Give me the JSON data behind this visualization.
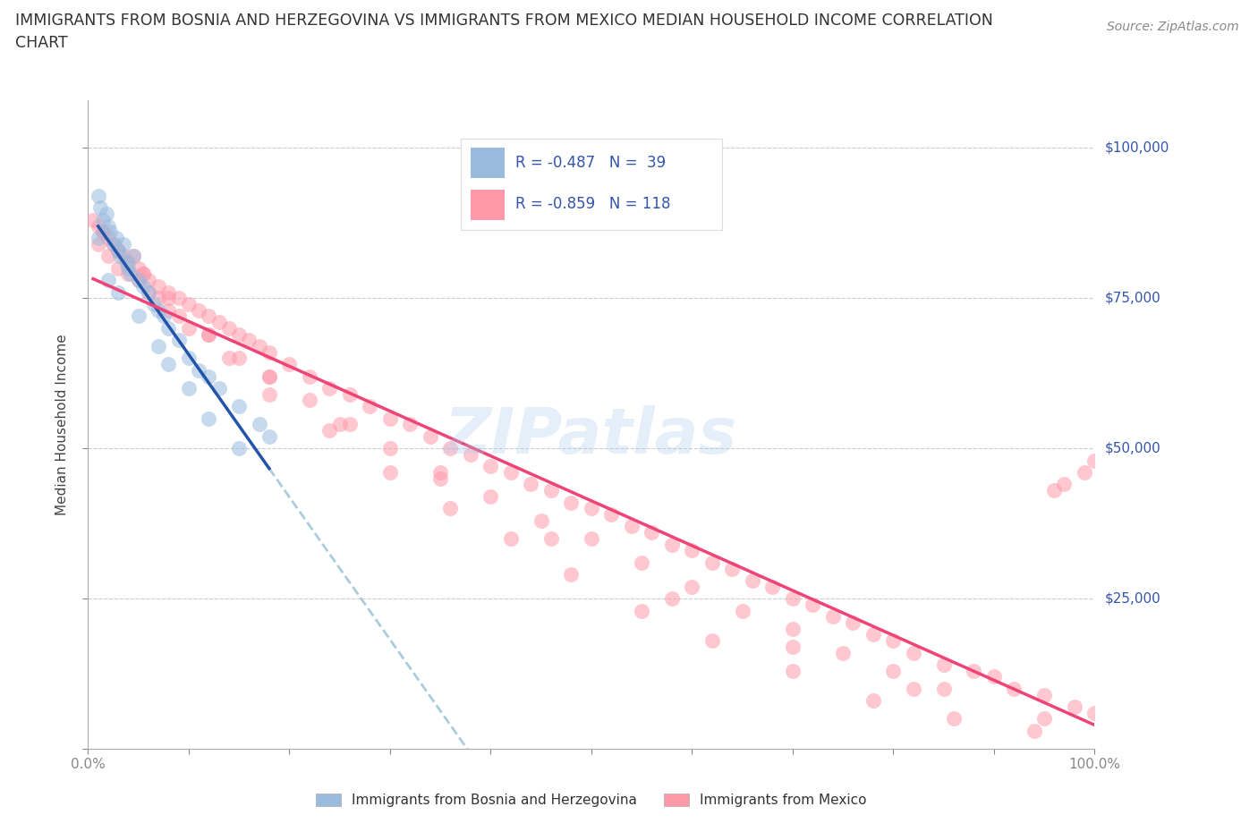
{
  "title_line1": "IMMIGRANTS FROM BOSNIA AND HERZEGOVINA VS IMMIGRANTS FROM MEXICO MEDIAN HOUSEHOLD INCOME CORRELATION",
  "title_line2": "CHART",
  "source_text": "Source: ZipAtlas.com",
  "ylabel": "Median Household Income",
  "watermark": "ZIPatlas",
  "legend_label1": "Immigrants from Bosnia and Herzegovina",
  "legend_label2": "Immigrants from Mexico",
  "blue_color": "#99BBDD",
  "pink_color": "#FF99AA",
  "blue_line_color": "#2255AA",
  "pink_line_color": "#EE4477",
  "dashed_line_color": "#AACCDD",
  "ytick_vals": [
    0,
    25000,
    50000,
    75000,
    100000
  ],
  "ytick_labels": [
    "",
    "$25,000",
    "$50,000",
    "$75,000",
    "$100,000"
  ],
  "blue_scatter_x": [
    1.0,
    1.2,
    1.5,
    1.8,
    2.0,
    2.2,
    2.5,
    2.8,
    3.0,
    3.2,
    3.5,
    3.8,
    4.0,
    4.2,
    4.5,
    5.0,
    5.5,
    6.0,
    6.5,
    7.0,
    7.5,
    8.0,
    9.0,
    10.0,
    11.0,
    12.0,
    13.0,
    15.0,
    17.0,
    18.0,
    1.0,
    2.0,
    3.0,
    5.0,
    7.0,
    8.0,
    10.0,
    12.0,
    15.0
  ],
  "blue_scatter_y": [
    92000,
    90000,
    88000,
    89000,
    87000,
    86000,
    84000,
    85000,
    83000,
    82000,
    84000,
    81000,
    80000,
    79000,
    82000,
    78000,
    77000,
    76000,
    74000,
    73000,
    72000,
    70000,
    68000,
    65000,
    63000,
    62000,
    60000,
    57000,
    54000,
    52000,
    85000,
    78000,
    76000,
    72000,
    67000,
    64000,
    60000,
    55000,
    50000
  ],
  "pink_scatter_x": [
    0.5,
    1.0,
    1.5,
    2.0,
    2.5,
    3.0,
    3.5,
    4.0,
    4.5,
    5.0,
    5.5,
    6.0,
    7.0,
    8.0,
    9.0,
    10.0,
    11.0,
    12.0,
    13.0,
    14.0,
    15.0,
    16.0,
    17.0,
    18.0,
    20.0,
    22.0,
    24.0,
    26.0,
    28.0,
    30.0,
    32.0,
    34.0,
    36.0,
    38.0,
    40.0,
    42.0,
    44.0,
    46.0,
    48.0,
    50.0,
    52.0,
    54.0,
    56.0,
    58.0,
    60.0,
    62.0,
    64.0,
    66.0,
    68.0,
    70.0,
    72.0,
    74.0,
    76.0,
    78.0,
    80.0,
    82.0,
    85.0,
    88.0,
    90.0,
    92.0,
    95.0,
    98.0,
    100.0,
    3.0,
    5.0,
    7.0,
    9.0,
    12.0,
    15.0,
    18.0,
    22.0,
    26.0,
    30.0,
    35.0,
    40.0,
    45.0,
    50.0,
    55.0,
    60.0,
    65.0,
    70.0,
    75.0,
    80.0,
    85.0,
    1.0,
    2.0,
    4.0,
    6.0,
    8.0,
    10.0,
    14.0,
    18.0,
    24.0,
    30.0,
    36.0,
    42.0,
    48.0,
    55.0,
    62.0,
    70.0,
    78.0,
    86.0,
    94.0,
    1.5,
    3.0,
    5.5,
    8.0,
    12.0,
    18.0,
    25.0,
    35.0,
    46.0,
    58.0,
    70.0,
    82.0,
    95.0,
    100.0,
    99.0,
    97.0,
    96.0
  ],
  "pink_scatter_y": [
    88000,
    87000,
    86000,
    85000,
    84000,
    83000,
    82000,
    81000,
    82000,
    80000,
    79000,
    78000,
    77000,
    76000,
    75000,
    74000,
    73000,
    72000,
    71000,
    70000,
    69000,
    68000,
    67000,
    66000,
    64000,
    62000,
    60000,
    59000,
    57000,
    55000,
    54000,
    52000,
    50000,
    49000,
    47000,
    46000,
    44000,
    43000,
    41000,
    40000,
    39000,
    37000,
    36000,
    34000,
    33000,
    31000,
    30000,
    28000,
    27000,
    25000,
    24000,
    22000,
    21000,
    19000,
    18000,
    16000,
    14000,
    13000,
    12000,
    10000,
    9000,
    7000,
    6000,
    80000,
    78000,
    75000,
    72000,
    69000,
    65000,
    62000,
    58000,
    54000,
    50000,
    46000,
    42000,
    38000,
    35000,
    31000,
    27000,
    23000,
    20000,
    16000,
    13000,
    10000,
    84000,
    82000,
    79000,
    76000,
    73000,
    70000,
    65000,
    59000,
    53000,
    46000,
    40000,
    35000,
    29000,
    23000,
    18000,
    13000,
    8000,
    5000,
    3000,
    86000,
    83000,
    79000,
    75000,
    69000,
    62000,
    54000,
    45000,
    35000,
    25000,
    17000,
    10000,
    5000,
    48000,
    46000,
    44000,
    43000
  ]
}
